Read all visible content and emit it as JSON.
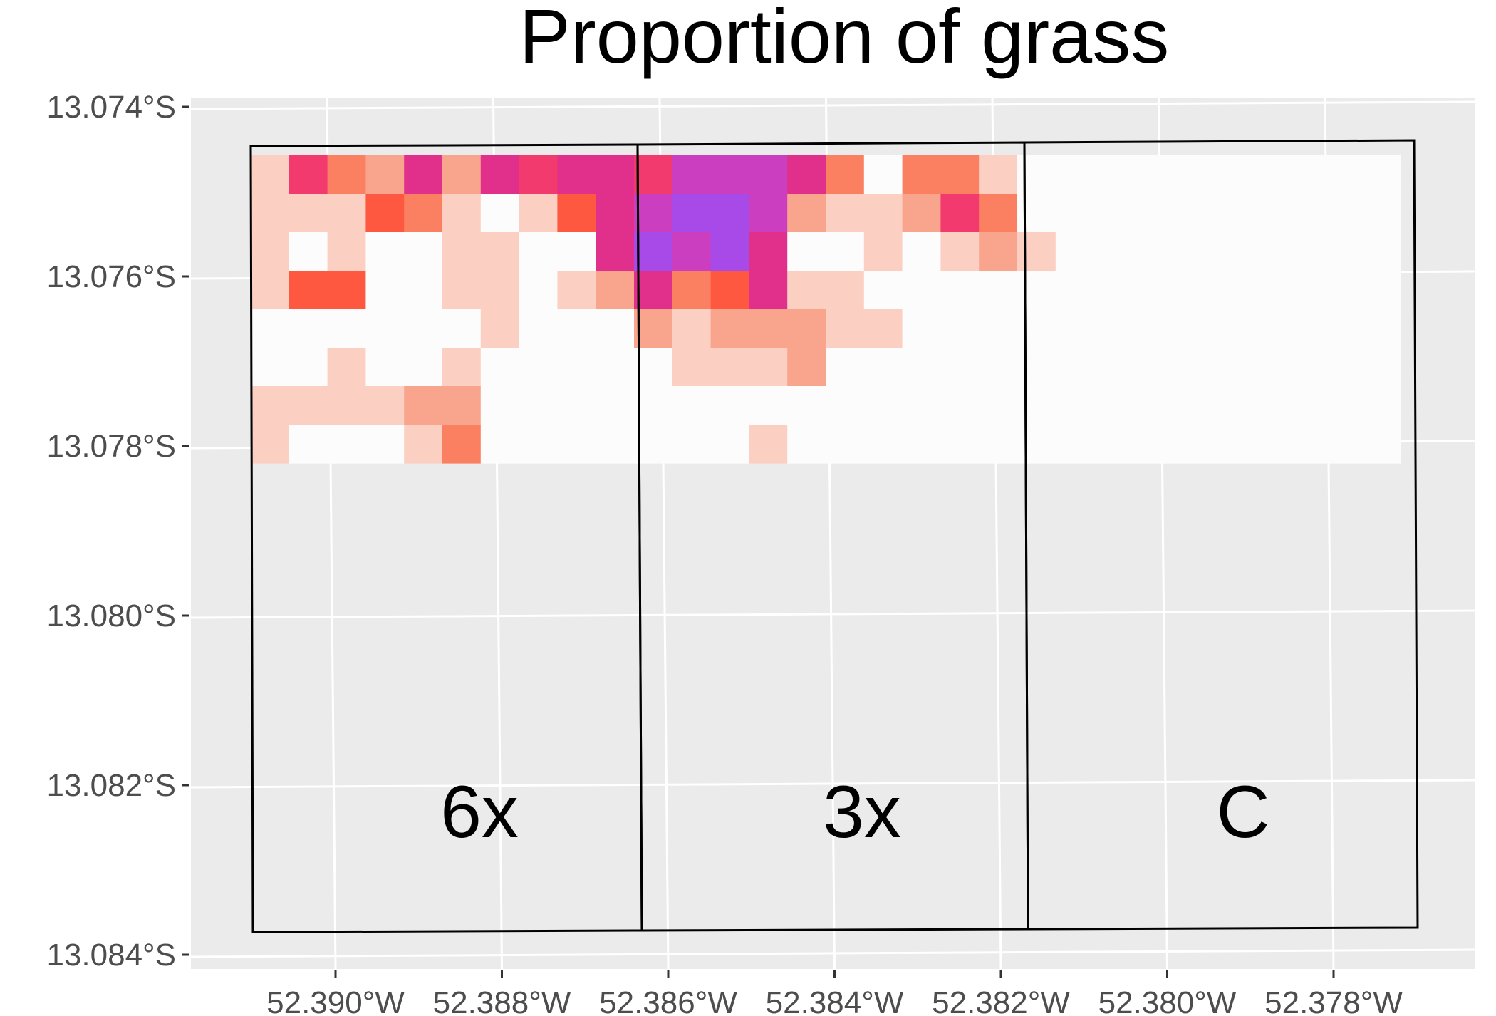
{
  "title": "Proportion of grass",
  "map": {
    "panel_background": "#ebebeb",
    "grid_color": "#ffffff",
    "lat_ticks": [
      "13.074°S",
      "13.076°S",
      "13.078°S",
      "13.080°S",
      "13.082°S",
      "13.084°S"
    ],
    "lon_ticks": [
      "52.390°W",
      "52.388°W",
      "52.386°W",
      "52.384°W",
      "52.382°W",
      "52.380°W",
      "52.378°W"
    ],
    "plots": [
      {
        "label": "6x"
      },
      {
        "label": "3x"
      },
      {
        "label": "C"
      }
    ],
    "raster": {
      "color_scale": [
        "#fcfcfc",
        "#fbd0c3",
        "#f9a58d",
        "#fb8062",
        "#fe5840",
        "#f23a6e",
        "#e12f8c",
        "#cc3ec0",
        "#a84ae8"
      ],
      "rows": [
        [
          1,
          5,
          3,
          2,
          6,
          2,
          6,
          5,
          6,
          6,
          5,
          7,
          7,
          7,
          6,
          3,
          0,
          3,
          3,
          1,
          0,
          0,
          0,
          0,
          0,
          0,
          0,
          0,
          0,
          0
        ],
        [
          1,
          1,
          1,
          4,
          3,
          1,
          0,
          1,
          4,
          6,
          7,
          8,
          8,
          7,
          2,
          1,
          1,
          2,
          5,
          3,
          0,
          0,
          0,
          0,
          0,
          0,
          0,
          0,
          0,
          0
        ],
        [
          1,
          0,
          1,
          0,
          0,
          1,
          1,
          0,
          0,
          6,
          8,
          7,
          8,
          6,
          0,
          0,
          1,
          0,
          1,
          2,
          1,
          0,
          0,
          0,
          0,
          0,
          0,
          0,
          0,
          0
        ],
        [
          1,
          4,
          4,
          0,
          0,
          1,
          1,
          0,
          1,
          2,
          6,
          3,
          4,
          6,
          1,
          1,
          0,
          0,
          0,
          0,
          0,
          0,
          0,
          0,
          0,
          0,
          0,
          0,
          0,
          0
        ],
        [
          0,
          0,
          0,
          0,
          0,
          0,
          1,
          0,
          0,
          0,
          2,
          1,
          2,
          2,
          2,
          1,
          1,
          0,
          0,
          0,
          0,
          0,
          0,
          0,
          0,
          0,
          0,
          0,
          0,
          0
        ],
        [
          0,
          0,
          1,
          0,
          0,
          1,
          0,
          0,
          0,
          0,
          0,
          1,
          1,
          1,
          2,
          0,
          0,
          0,
          0,
          0,
          0,
          0,
          0,
          0,
          0,
          0,
          0,
          0,
          0,
          0
        ],
        [
          1,
          1,
          1,
          1,
          2,
          2,
          0,
          0,
          0,
          0,
          0,
          0,
          0,
          0,
          0,
          0,
          0,
          0,
          0,
          0,
          0,
          0,
          0,
          0,
          0,
          0,
          0,
          0,
          0,
          0
        ],
        [
          1,
          0,
          0,
          0,
          1,
          3,
          0,
          0,
          0,
          0,
          0,
          0,
          0,
          1,
          0,
          0,
          0,
          0,
          0,
          0,
          0,
          0,
          0,
          0,
          0,
          0,
          0,
          0,
          0,
          0
        ]
      ]
    }
  }
}
